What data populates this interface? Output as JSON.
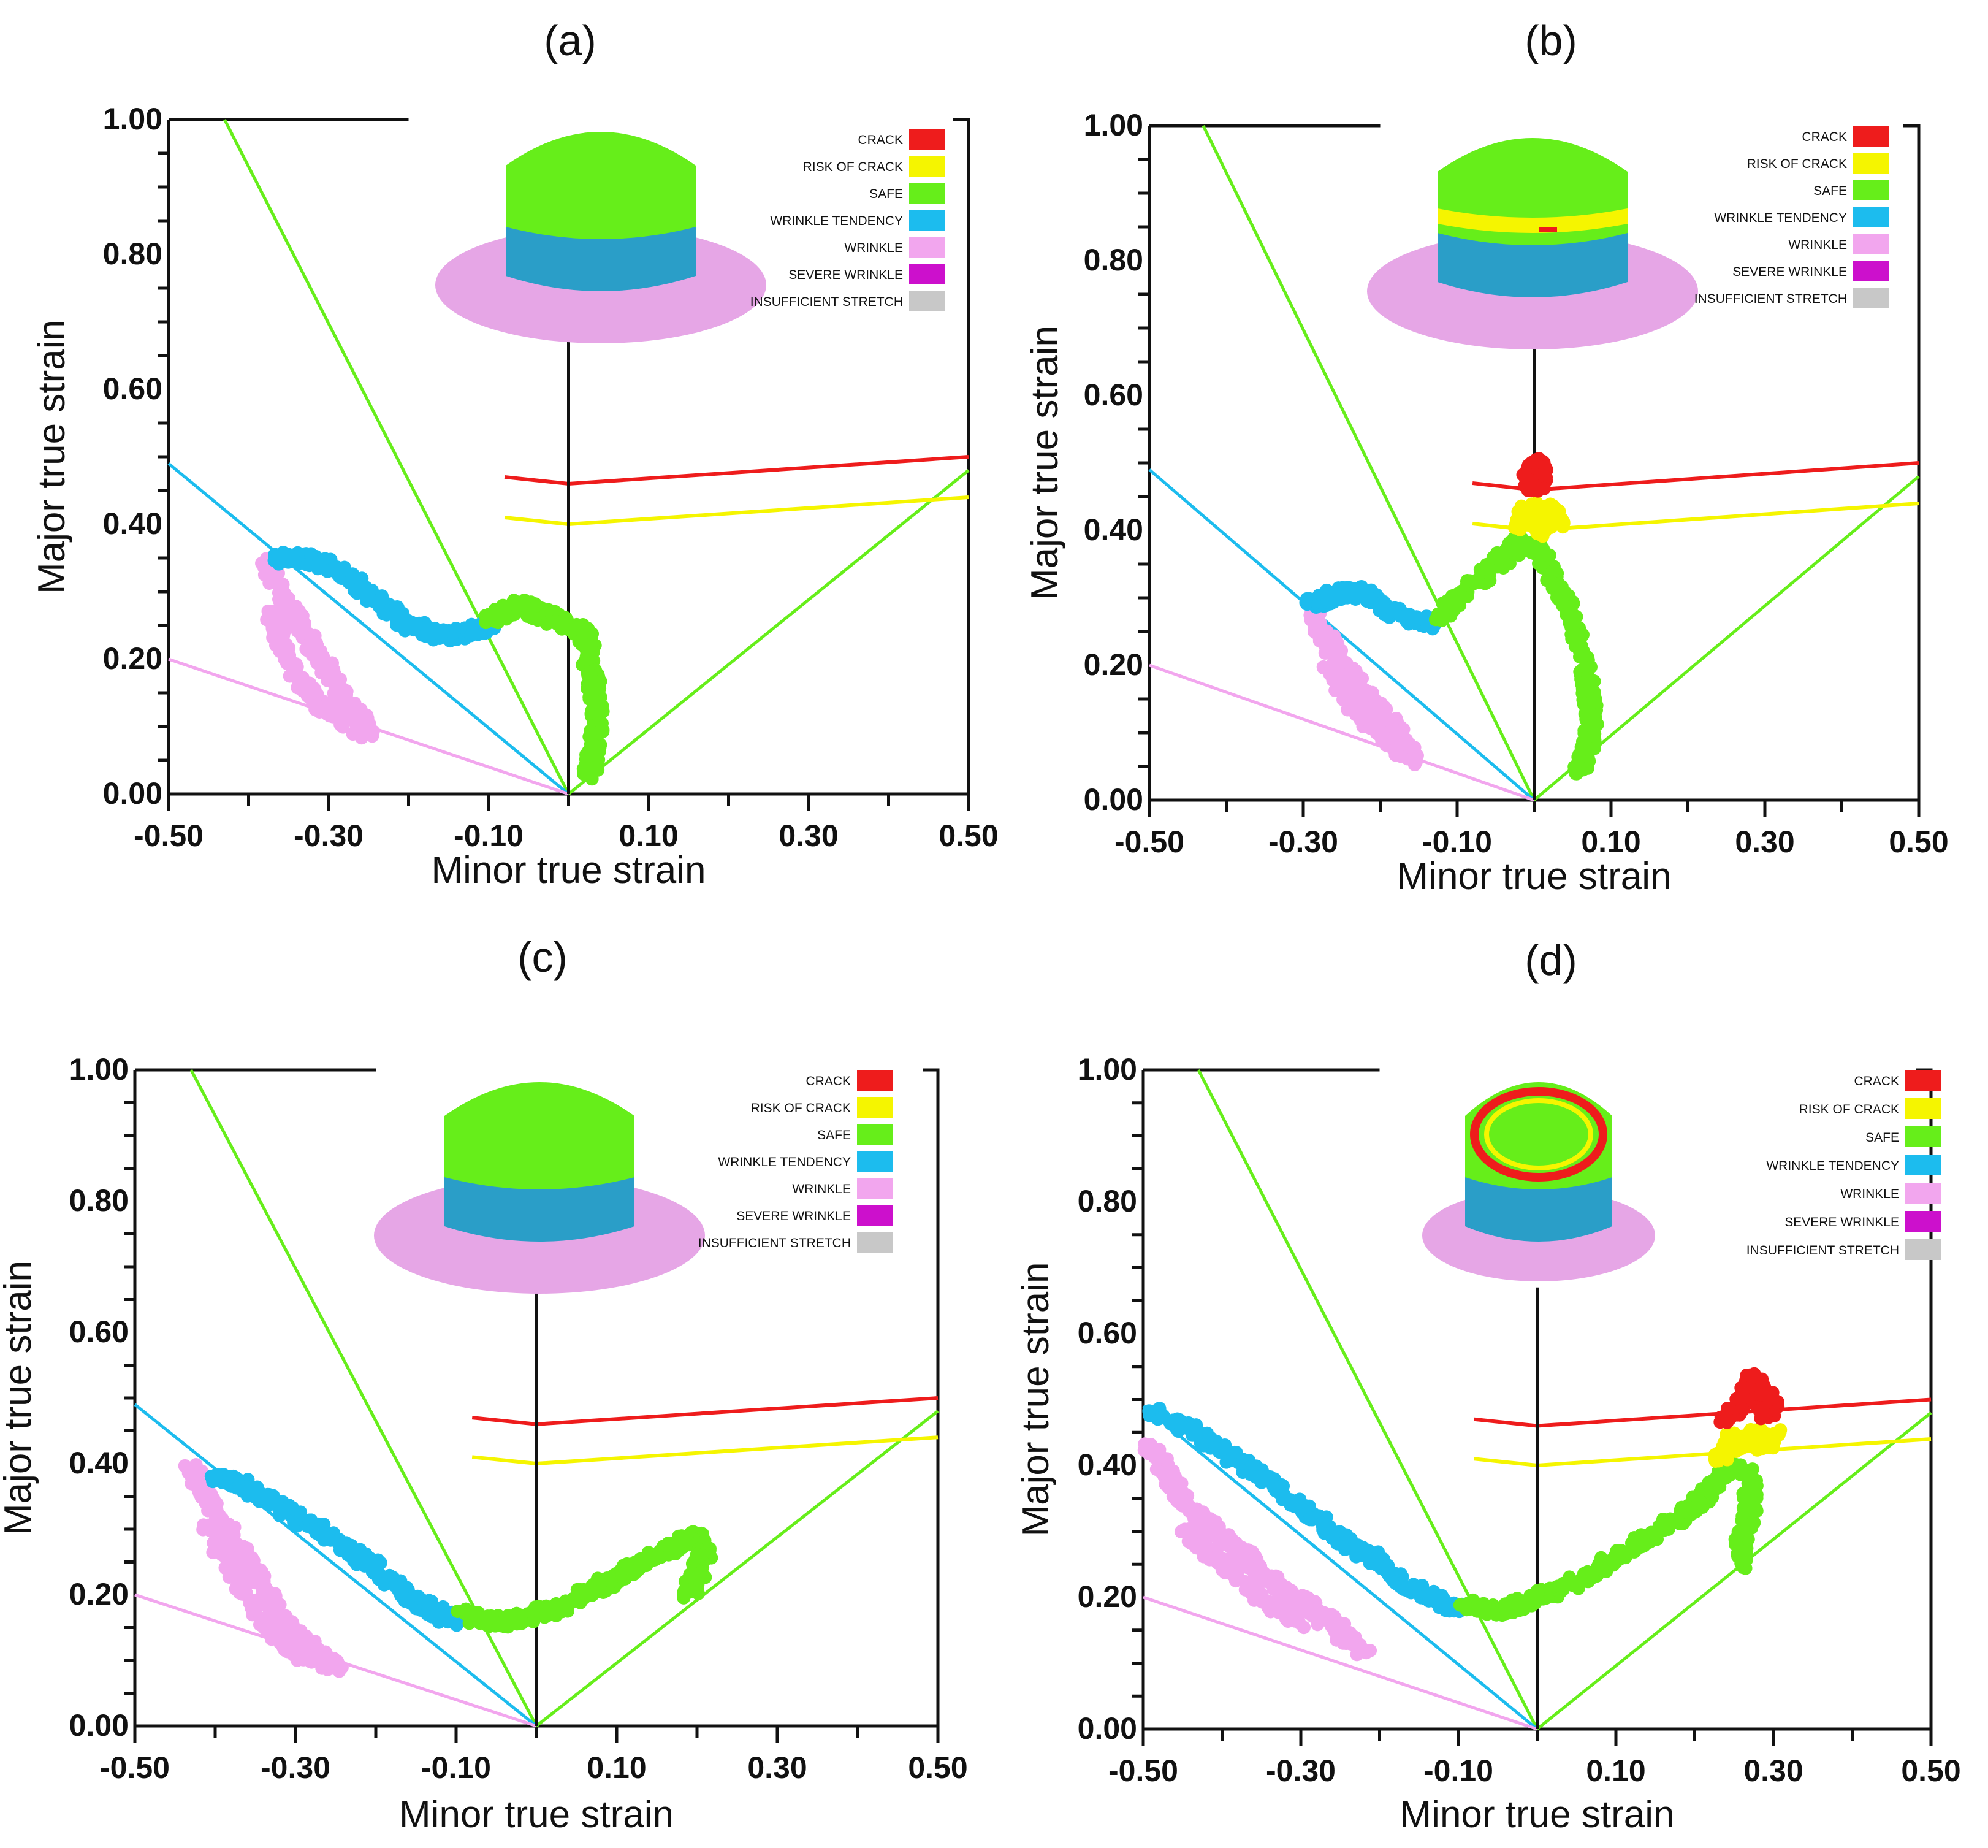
{
  "chart_data": [
    {
      "type": "scatter",
      "panel_label": "(a)",
      "xlabel": "Minor true strain",
      "ylabel": "Major true strain",
      "xlim": [
        -0.5,
        0.5
      ],
      "ylim": [
        0,
        1.0
      ],
      "x_ticks": [
        "-0.50",
        "-0.30",
        "-0.10",
        "0.10",
        "0.30",
        "0.50"
      ],
      "y_ticks": [
        "0.00",
        "0.20",
        "0.40",
        "0.60",
        "0.80",
        "1.00"
      ],
      "legend": [
        "CRACK",
        "RISK OF CRACK",
        "SAFE",
        "WRINKLE TENDENCY",
        "WRINKLE",
        "SEVERE WRINKLE",
        "INSUFFICIENT STRETCH"
      ],
      "cup_top_region": "safe",
      "series": [
        {
          "name": "WRINKLE",
          "points": [
            [
              -0.38,
              0.34
            ],
            [
              -0.36,
              0.3
            ],
            [
              -0.34,
              0.26
            ],
            [
              -0.32,
              0.22
            ],
            [
              -0.3,
              0.18
            ],
            [
              -0.28,
              0.14
            ],
            [
              -0.26,
              0.11
            ],
            [
              -0.25,
              0.09
            ],
            [
              -0.3,
              0.12
            ],
            [
              -0.33,
              0.16
            ],
            [
              -0.36,
              0.22
            ],
            [
              -0.37,
              0.27
            ]
          ]
        },
        {
          "name": "WRINKLE TENDENCY",
          "points": [
            [
              -0.37,
              0.35
            ],
            [
              -0.33,
              0.35
            ],
            [
              -0.3,
              0.34
            ],
            [
              -0.27,
              0.32
            ],
            [
              -0.24,
              0.29
            ],
            [
              -0.21,
              0.26
            ],
            [
              -0.18,
              0.24
            ],
            [
              -0.15,
              0.235
            ],
            [
              -0.12,
              0.24
            ],
            [
              -0.1,
              0.25
            ]
          ]
        },
        {
          "name": "SAFE",
          "points": [
            [
              -0.1,
              0.26
            ],
            [
              -0.08,
              0.27
            ],
            [
              -0.06,
              0.28
            ],
            [
              -0.04,
              0.27
            ],
            [
              -0.02,
              0.26
            ],
            [
              0.0,
              0.25
            ],
            [
              0.02,
              0.24
            ],
            [
              0.025,
              0.21
            ],
            [
              0.03,
              0.17
            ],
            [
              0.035,
              0.13
            ],
            [
              0.035,
              0.09
            ],
            [
              0.03,
              0.05
            ],
            [
              0.025,
              0.03
            ]
          ]
        }
      ]
    },
    {
      "type": "scatter",
      "panel_label": "(b)",
      "xlabel": "Minor true strain",
      "ylabel": "Major true strain",
      "xlim": [
        -0.5,
        0.5
      ],
      "ylim": [
        0,
        1.0
      ],
      "x_ticks": [
        "-0.50",
        "-0.30",
        "-0.10",
        "0.10",
        "0.30",
        "0.50"
      ],
      "y_ticks": [
        "0.00",
        "0.20",
        "0.40",
        "0.60",
        "0.80",
        "1.00"
      ],
      "legend": [
        "CRACK",
        "RISK OF CRACK",
        "SAFE",
        "WRINKLE TENDENCY",
        "WRINKLE",
        "SEVERE WRINKLE",
        "INSUFFICIENT STRETCH"
      ],
      "cup_top_region": "safe with risk-of-crack band",
      "series": [
        {
          "name": "WRINKLE",
          "points": [
            [
              -0.29,
              0.28
            ],
            [
              -0.27,
              0.24
            ],
            [
              -0.25,
              0.2
            ],
            [
              -0.22,
              0.16
            ],
            [
              -0.19,
              0.12
            ],
            [
              -0.17,
              0.09
            ],
            [
              -0.16,
              0.06
            ],
            [
              -0.2,
              0.1
            ],
            [
              -0.24,
              0.15
            ],
            [
              -0.27,
              0.2
            ]
          ]
        },
        {
          "name": "WRINKLE TENDENCY",
          "points": [
            [
              -0.29,
              0.29
            ],
            [
              -0.27,
              0.3
            ],
            [
              -0.24,
              0.31
            ],
            [
              -0.21,
              0.3
            ],
            [
              -0.19,
              0.28
            ],
            [
              -0.16,
              0.27
            ],
            [
              -0.13,
              0.26
            ]
          ]
        },
        {
          "name": "SAFE",
          "points": [
            [
              -0.12,
              0.27
            ],
            [
              -0.1,
              0.3
            ],
            [
              -0.07,
              0.33
            ],
            [
              -0.04,
              0.36
            ],
            [
              -0.02,
              0.38
            ],
            [
              0.01,
              0.37
            ],
            [
              0.03,
              0.32
            ],
            [
              0.05,
              0.27
            ],
            [
              0.06,
              0.22
            ],
            [
              0.07,
              0.17
            ],
            [
              0.075,
              0.13
            ],
            [
              0.07,
              0.08
            ],
            [
              0.06,
              0.04
            ]
          ]
        },
        {
          "name": "RISK OF CRACK",
          "points": [
            [
              -0.02,
              0.41
            ],
            [
              -0.01,
              0.43
            ],
            [
              0.0,
              0.42
            ],
            [
              0.01,
              0.4
            ],
            [
              0.02,
              0.43
            ],
            [
              0.03,
              0.41
            ],
            [
              0.0,
              0.44
            ]
          ]
        },
        {
          "name": "CRACK",
          "points": [
            [
              -0.01,
              0.47
            ],
            [
              0.0,
              0.49
            ],
            [
              0.005,
              0.5
            ],
            [
              0.01,
              0.48
            ],
            [
              0.0,
              0.46
            ]
          ]
        }
      ]
    },
    {
      "type": "scatter",
      "panel_label": "(c)",
      "xlabel": "Minor true strain",
      "ylabel": "Major true strain",
      "xlim": [
        -0.5,
        0.5
      ],
      "ylim": [
        0,
        1.0
      ],
      "x_ticks": [
        "-0.50",
        "-0.30",
        "-0.10",
        "0.10",
        "0.30",
        "0.50"
      ],
      "y_ticks": [
        "0.00",
        "0.20",
        "0.40",
        "0.60",
        "0.80",
        "1.00"
      ],
      "legend": [
        "CRACK",
        "RISK OF CRACK",
        "SAFE",
        "WRINKLE TENDENCY",
        "WRINKLE",
        "SEVERE WRINKLE",
        "INSUFFICIENT STRETCH"
      ],
      "cup_top_region": "safe",
      "series": [
        {
          "name": "WRINKLE",
          "points": [
            [
              -0.43,
              0.39
            ],
            [
              -0.41,
              0.35
            ],
            [
              -0.39,
              0.31
            ],
            [
              -0.37,
              0.27
            ],
            [
              -0.35,
              0.23
            ],
            [
              -0.33,
              0.19
            ],
            [
              -0.31,
              0.15
            ],
            [
              -0.28,
              0.12
            ],
            [
              -0.25,
              0.09
            ],
            [
              -0.3,
              0.11
            ],
            [
              -0.34,
              0.16
            ],
            [
              -0.38,
              0.24
            ],
            [
              -0.41,
              0.31
            ]
          ]
        },
        {
          "name": "WRINKLE TENDENCY",
          "points": [
            [
              -0.4,
              0.38
            ],
            [
              -0.37,
              0.37
            ],
            [
              -0.34,
              0.35
            ],
            [
              -0.3,
              0.32
            ],
            [
              -0.26,
              0.29
            ],
            [
              -0.22,
              0.26
            ],
            [
              -0.18,
              0.22
            ],
            [
              -0.15,
              0.19
            ],
            [
              -0.12,
              0.17
            ],
            [
              -0.1,
              0.16
            ]
          ]
        },
        {
          "name": "SAFE",
          "points": [
            [
              -0.09,
              0.17
            ],
            [
              -0.06,
              0.16
            ],
            [
              -0.03,
              0.16
            ],
            [
              0.0,
              0.17
            ],
            [
              0.03,
              0.18
            ],
            [
              0.06,
              0.2
            ],
            [
              0.09,
              0.22
            ],
            [
              0.12,
              0.24
            ],
            [
              0.15,
              0.26
            ],
            [
              0.18,
              0.28
            ],
            [
              0.2,
              0.29
            ],
            [
              0.21,
              0.26
            ],
            [
              0.2,
              0.23
            ],
            [
              0.19,
              0.2
            ]
          ]
        }
      ]
    },
    {
      "type": "scatter",
      "panel_label": "(d)",
      "xlabel": "Minor true strain",
      "ylabel": "Major true strain",
      "xlim": [
        -0.5,
        0.5
      ],
      "ylim": [
        0,
        1.0
      ],
      "x_ticks": [
        "-0.50",
        "-0.30",
        "-0.10",
        "0.10",
        "0.30",
        "0.50"
      ],
      "y_ticks": [
        "0.00",
        "0.20",
        "0.40",
        "0.60",
        "0.80",
        "1.00"
      ],
      "legend": [
        "CRACK",
        "RISK OF CRACK",
        "SAFE",
        "WRINKLE TENDENCY",
        "WRINKLE",
        "SEVERE WRINKLE",
        "INSUFFICIENT STRETCH"
      ],
      "cup_top_region": "safe with crack ring",
      "series": [
        {
          "name": "WRINKLE",
          "points": [
            [
              -0.49,
              0.43
            ],
            [
              -0.47,
              0.39
            ],
            [
              -0.45,
              0.35
            ],
            [
              -0.43,
              0.32
            ],
            [
              -0.4,
              0.29
            ],
            [
              -0.37,
              0.26
            ],
            [
              -0.34,
              0.23
            ],
            [
              -0.31,
              0.2
            ],
            [
              -0.28,
              0.18
            ],
            [
              -0.25,
              0.15
            ],
            [
              -0.22,
              0.12
            ],
            [
              -0.45,
              0.3
            ],
            [
              -0.4,
              0.25
            ],
            [
              -0.35,
              0.2
            ],
            [
              -0.3,
              0.16
            ]
          ]
        },
        {
          "name": "WRINKLE TENDENCY",
          "points": [
            [
              -0.49,
              0.48
            ],
            [
              -0.45,
              0.46
            ],
            [
              -0.41,
              0.43
            ],
            [
              -0.37,
              0.4
            ],
            [
              -0.33,
              0.37
            ],
            [
              -0.29,
              0.33
            ],
            [
              -0.25,
              0.29
            ],
            [
              -0.21,
              0.26
            ],
            [
              -0.17,
              0.22
            ],
            [
              -0.13,
              0.2
            ],
            [
              -0.1,
              0.18
            ]
          ]
        },
        {
          "name": "SAFE",
          "points": [
            [
              -0.09,
              0.19
            ],
            [
              -0.05,
              0.18
            ],
            [
              -0.02,
              0.19
            ],
            [
              0.02,
              0.21
            ],
            [
              0.06,
              0.23
            ],
            [
              0.1,
              0.26
            ],
            [
              0.14,
              0.29
            ],
            [
              0.18,
              0.32
            ],
            [
              0.21,
              0.35
            ],
            [
              0.23,
              0.38
            ],
            [
              0.25,
              0.4
            ],
            [
              0.27,
              0.38
            ],
            [
              0.27,
              0.33
            ],
            [
              0.26,
              0.28
            ],
            [
              0.26,
              0.25
            ]
          ]
        },
        {
          "name": "RISK OF CRACK",
          "points": [
            [
              0.23,
              0.41
            ],
            [
              0.25,
              0.43
            ],
            [
              0.27,
              0.44
            ],
            [
              0.29,
              0.43
            ],
            [
              0.3,
              0.45
            ],
            [
              0.24,
              0.44
            ]
          ]
        },
        {
          "name": "CRACK",
          "points": [
            [
              0.24,
              0.47
            ],
            [
              0.26,
              0.49
            ],
            [
              0.27,
              0.52
            ],
            [
              0.28,
              0.5
            ],
            [
              0.29,
              0.48
            ],
            [
              0.3,
              0.49
            ],
            [
              0.27,
              0.54
            ]
          ]
        }
      ]
    }
  ],
  "reference_lines": {
    "crack_curve": [
      [
        -0.08,
        0.47
      ],
      [
        0.0,
        0.46
      ],
      [
        0.5,
        0.5
      ]
    ],
    "risk_curve": [
      [
        -0.08,
        0.41
      ],
      [
        0.0,
        0.4
      ],
      [
        0.5,
        0.44
      ]
    ],
    "safe_left": [
      [
        -0.43,
        1.0
      ],
      [
        0.0,
        0.0
      ]
    ],
    "safe_right": [
      [
        0.0,
        0.0
      ],
      [
        0.5,
        0.48
      ]
    ],
    "wrinkle_tendency": [
      [
        -0.5,
        0.49
      ],
      [
        0.0,
        0.0
      ]
    ],
    "wrinkle": [
      [
        -0.5,
        0.2
      ],
      [
        0.0,
        0.0
      ]
    ],
    "top_bar": [
      [
        -0.5,
        1.0
      ],
      [
        -0.2,
        1.0
      ]
    ],
    "center_line_top": 0.67
  },
  "colors": {
    "CRACK": "#ee1c1c",
    "RISK OF CRACK": "#f5f500",
    "SAFE": "#66ee1a",
    "WRINKLE TENDENCY": "#1cbcee",
    "WRINKLE": "#f2a6ee",
    "SEVERE WRINKLE": "#cc10cc",
    "INSUFFICIENT STRETCH": "#c8c8c8",
    "cup_side": "#2a9ec8",
    "flange": "#e6a6e6",
    "axis": "#111111"
  }
}
